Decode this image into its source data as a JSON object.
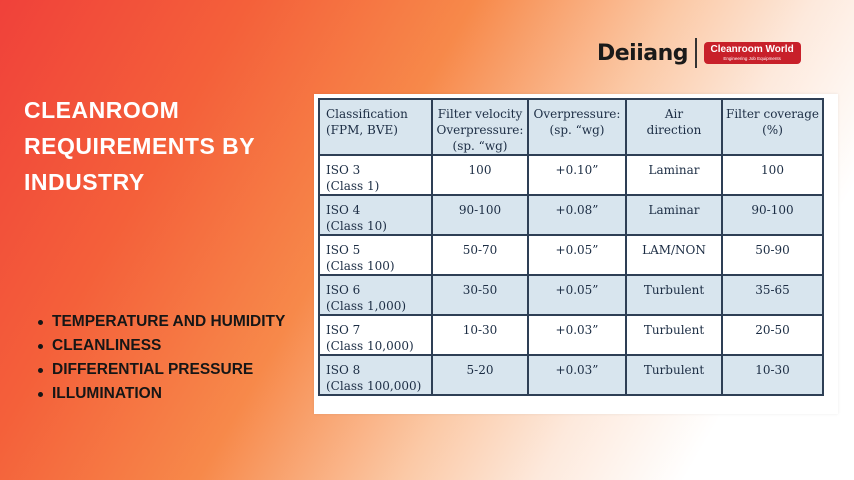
{
  "logo": {
    "brand": "Deiiang",
    "badge_title": "Cleanroom World",
    "badge_subtitle": "Engineering Job Equipments"
  },
  "title": "CLEANROOM REQUIREMENTS BY INDUSTRY",
  "bullets": [
    "TEMPERATURE AND HUMIDITY",
    "CLEANLINESS",
    "DIFFERENTIAL PRESSURE",
    "ILLUMINATION"
  ],
  "table": {
    "headers": [
      [
        "Classification",
        "(FPM, BVE)"
      ],
      [
        "Filter velocity",
        "Overpressure:",
        "(sp. “wg)"
      ],
      [
        "Overpressure:",
        "(sp. “wg)"
      ],
      [
        "Air",
        "direction"
      ],
      [
        "Filter coverage",
        "(%)"
      ]
    ],
    "rows": [
      {
        "iso": "ISO 3",
        "class": "(Class 1)",
        "velocity": "100",
        "overpressure": "+0.10”",
        "air": "Laminar",
        "coverage": "100"
      },
      {
        "iso": "ISO 4",
        "class": "(Class 10)",
        "velocity": "90-100",
        "overpressure": "+0.08”",
        "air": "Laminar",
        "coverage": "90-100"
      },
      {
        "iso": "ISO 5",
        "class": "(Class 100)",
        "velocity": "50-70",
        "overpressure": "+0.05”",
        "air": "LAM/NON",
        "coverage": "50-90"
      },
      {
        "iso": "ISO 6",
        "class": "(Class 1,000)",
        "velocity": "30-50",
        "overpressure": "+0.05”",
        "air": "Turbulent",
        "coverage": "35-65"
      },
      {
        "iso": "ISO 7",
        "class": "(Class 10,000)",
        "velocity": "10-30",
        "overpressure": "+0.03”",
        "air": "Turbulent",
        "coverage": "20-50"
      },
      {
        "iso": "ISO 8",
        "class": "(Class 100,000)",
        "velocity": "5-20",
        "overpressure": "+0.03”",
        "air": "Turbulent",
        "coverage": "10-30"
      }
    ]
  }
}
